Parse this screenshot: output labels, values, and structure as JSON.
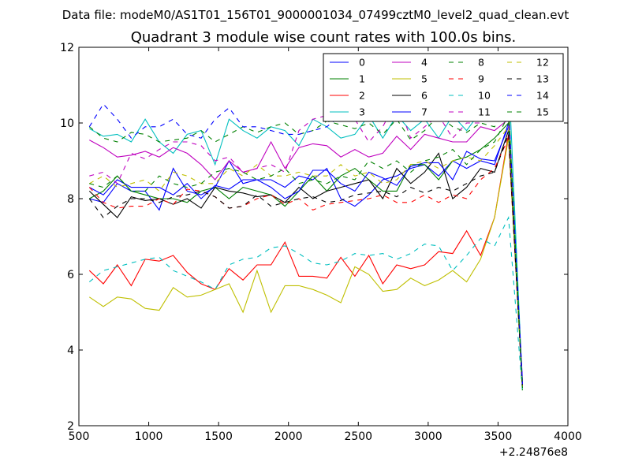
{
  "chart_data": {
    "type": "line",
    "suptitle": "Data file: modeM0/AS1T01_156T01_9000001034_07499cztM0_level2_quad_clean.evt",
    "title": "Quadrant 3 module wise count rates with 100.0s bins.",
    "xlabel": "",
    "ylabel": "",
    "xlim": [
      500,
      4000
    ],
    "ylim": [
      2,
      12
    ],
    "x_ticks": [
      "500",
      "1000",
      "1500",
      "2000",
      "2500",
      "3000",
      "3500",
      "4000"
    ],
    "y_ticks": [
      "2",
      "4",
      "6",
      "8",
      "10",
      "12"
    ],
    "x_offset_label": "+2.24876e8",
    "grid": false,
    "legend_position": "top-right",
    "x": [
      575,
      675,
      775,
      875,
      975,
      1075,
      1175,
      1275,
      1375,
      1475,
      1575,
      1675,
      1775,
      1875,
      1975,
      2075,
      2175,
      2275,
      2375,
      2475,
      2575,
      2675,
      2775,
      2875,
      2975,
      3075,
      3175,
      3275,
      3375,
      3475,
      3575,
      3675
    ],
    "series": [
      {
        "name": "0",
        "color": "#0000ff",
        "dash": "solid",
        "values": [
          8.0,
          7.9,
          8.4,
          8.2,
          8.2,
          7.7,
          8.8,
          8.2,
          8.1,
          8.3,
          9.0,
          8.4,
          8.5,
          8.5,
          8.3,
          8.6,
          8.5,
          8.8,
          8.0,
          7.8,
          8.1,
          8.5,
          8.6,
          8.8,
          8.9,
          8.6,
          9.0,
          8.8,
          9.0,
          8.9,
          10.0,
          3.2
        ]
      },
      {
        "name": "1",
        "color": "#008000",
        "dash": "solid",
        "values": [
          8.0,
          8.2,
          8.6,
          8.2,
          8.1,
          8.0,
          8.0,
          7.9,
          8.2,
          8.3,
          8.0,
          8.3,
          8.2,
          8.1,
          7.8,
          8.2,
          8.6,
          8.2,
          8.6,
          8.8,
          8.5,
          8.2,
          8.2,
          8.9,
          8.9,
          8.5,
          9.0,
          9.1,
          9.3,
          9.6,
          10.0,
          3.0
        ]
      },
      {
        "name": "2",
        "color": "#ff0000",
        "dash": "solid",
        "values": [
          6.1,
          5.75,
          6.25,
          5.7,
          6.4,
          6.35,
          6.5,
          6.05,
          5.75,
          5.6,
          6.15,
          5.85,
          6.25,
          6.25,
          6.85,
          5.95,
          5.95,
          5.9,
          6.45,
          5.95,
          6.5,
          5.75,
          6.25,
          6.15,
          6.25,
          6.6,
          6.55,
          7.15,
          6.5,
          7.5,
          9.7,
          3.1
        ]
      },
      {
        "name": "3",
        "color": "#00bfbf",
        "dash": "solid",
        "values": [
          9.85,
          9.65,
          9.7,
          9.5,
          10.1,
          9.5,
          9.2,
          9.7,
          9.8,
          8.9,
          10.1,
          9.8,
          9.6,
          9.9,
          9.8,
          9.4,
          10.1,
          9.9,
          9.6,
          9.7,
          10.2,
          9.6,
          10.2,
          9.8,
          10.1,
          9.6,
          10.2,
          9.8,
          10.3,
          10.2,
          11.4,
          3.0
        ]
      },
      {
        "name": "4",
        "color": "#bf00bf",
        "dash": "solid",
        "values": [
          9.55,
          9.35,
          9.1,
          9.15,
          9.25,
          9.1,
          9.35,
          9.2,
          8.9,
          8.5,
          9.0,
          8.7,
          8.8,
          9.5,
          8.8,
          9.35,
          9.45,
          9.4,
          9.1,
          9.3,
          9.1,
          9.2,
          9.65,
          9.3,
          9.7,
          9.6,
          9.5,
          9.5,
          9.9,
          9.8,
          10.1,
          3.1
        ]
      },
      {
        "name": "5",
        "color": "#bfbf00",
        "dash": "solid",
        "values": [
          5.4,
          5.15,
          5.4,
          5.35,
          5.1,
          5.05,
          5.65,
          5.4,
          5.45,
          5.6,
          5.75,
          5.0,
          6.1,
          5.0,
          5.7,
          5.7,
          5.6,
          5.45,
          5.25,
          6.2,
          6.0,
          5.55,
          5.6,
          5.9,
          5.7,
          5.85,
          6.1,
          5.8,
          6.4,
          7.5,
          9.6,
          3.0
        ]
      },
      {
        "name": "6",
        "color": "#000000",
        "dash": "solid",
        "values": [
          8.2,
          7.85,
          7.5,
          8.05,
          7.95,
          8.0,
          7.85,
          8.0,
          7.75,
          8.3,
          8.2,
          8.15,
          8.05,
          8.1,
          7.9,
          8.3,
          8.0,
          8.2,
          8.3,
          8.4,
          8.5,
          8.0,
          8.8,
          8.4,
          8.7,
          9.2,
          8.0,
          8.3,
          8.8,
          8.7,
          9.8,
          3.0
        ]
      },
      {
        "name": "7",
        "color": "#0000ff",
        "dash": "solid",
        "values": [
          8.3,
          8.1,
          8.5,
          8.3,
          8.3,
          8.3,
          8.1,
          8.4,
          8.0,
          8.35,
          8.25,
          8.5,
          8.5,
          8.3,
          8.0,
          8.2,
          8.75,
          8.75,
          8.4,
          8.2,
          8.7,
          8.55,
          8.35,
          8.85,
          8.95,
          8.95,
          8.5,
          9.25,
          9.05,
          9.0,
          9.9,
          3.1
        ]
      },
      {
        "name": "8",
        "color": "#008000",
        "dash": "dashed",
        "values": [
          9.9,
          9.6,
          9.5,
          9.75,
          9.7,
          9.5,
          9.55,
          9.6,
          9.8,
          9.5,
          9.7,
          9.9,
          9.75,
          9.9,
          10.0,
          9.7,
          9.8,
          10.05,
          9.95,
          9.85,
          10.0,
          9.7,
          10.1,
          9.55,
          9.8,
          10.2,
          9.9,
          9.75,
          10.0,
          9.9,
          10.5,
          2.9
        ]
      },
      {
        "name": "9",
        "color": "#ff0000",
        "dash": "dashed",
        "values": [
          8.3,
          7.9,
          7.75,
          7.8,
          7.8,
          8.0,
          7.85,
          8.25,
          8.2,
          8.05,
          7.75,
          7.8,
          8.0,
          8.1,
          7.85,
          8.0,
          7.7,
          7.85,
          7.9,
          7.95,
          8.0,
          8.1,
          7.9,
          7.9,
          8.1,
          7.9,
          8.1,
          8.0,
          8.5,
          8.8,
          9.6,
          3.0
        ]
      },
      {
        "name": "10",
        "color": "#00bfbf",
        "dash": "dashed",
        "values": [
          5.8,
          6.1,
          6.2,
          6.3,
          6.4,
          6.45,
          6.1,
          5.95,
          5.8,
          5.6,
          6.25,
          6.4,
          6.45,
          6.7,
          6.75,
          6.55,
          6.3,
          6.25,
          6.35,
          6.55,
          6.5,
          6.55,
          6.4,
          6.55,
          6.8,
          6.75,
          6.1,
          6.5,
          6.95,
          6.75,
          7.5,
          2.9
        ]
      },
      {
        "name": "11",
        "color": "#bf00bf",
        "dash": "dashed",
        "values": [
          8.6,
          8.7,
          8.4,
          9.2,
          9.05,
          9.3,
          9.5,
          9.5,
          9.4,
          9.0,
          9.1,
          8.7,
          8.8,
          8.9,
          8.7,
          9.8,
          10.1,
          10.2,
          10.3,
          10.1,
          9.5,
          9.9,
          10.6,
          9.6,
          9.9,
          10.2,
          9.6,
          10.0,
          10.0,
          10.5,
          10.1,
          3.0
        ]
      },
      {
        "name": "12",
        "color": "#bfbf00",
        "dash": "dashed",
        "values": [
          8.4,
          8.6,
          8.3,
          8.4,
          8.5,
          8.2,
          8.7,
          8.6,
          8.4,
          8.4,
          8.8,
          8.6,
          8.9,
          8.6,
          8.6,
          8.7,
          8.6,
          8.6,
          8.9,
          8.6,
          8.7,
          8.4,
          8.5,
          8.9,
          9.0,
          8.8,
          9.0,
          9.1,
          9.0,
          9.4,
          9.9,
          3.0
        ]
      },
      {
        "name": "13",
        "color": "#000000",
        "dash": "dashed",
        "values": [
          8.0,
          7.5,
          7.8,
          8.0,
          8.0,
          7.9,
          8.05,
          8.1,
          8.2,
          8.05,
          7.75,
          7.8,
          8.1,
          7.8,
          7.9,
          8.0,
          8.05,
          7.9,
          7.95,
          8.1,
          8.15,
          8.2,
          8.05,
          8.3,
          8.15,
          8.3,
          8.2,
          8.4,
          8.6,
          8.7,
          9.7,
          3.0
        ]
      },
      {
        "name": "14",
        "color": "#0000ff",
        "dash": "dashed",
        "values": [
          9.9,
          10.5,
          10.1,
          9.6,
          9.9,
          9.9,
          10.1,
          9.7,
          9.6,
          10.1,
          10.4,
          9.9,
          9.9,
          9.8,
          9.7,
          9.7,
          9.8,
          9.9,
          10.2,
          10.4,
          10.1,
          10.5,
          10.6,
          10.2,
          10.3,
          10.3,
          10.4,
          10.1,
          10.3,
          10.4,
          10.5,
          3.1
        ]
      },
      {
        "name": "15",
        "color": "#008000",
        "dash": "dashed",
        "values": [
          8.4,
          8.3,
          8.6,
          8.2,
          8.2,
          8.6,
          8.4,
          8.3,
          8.4,
          8.7,
          8.8,
          8.7,
          8.5,
          8.6,
          8.8,
          8.4,
          8.5,
          8.4,
          8.6,
          8.5,
          9.0,
          8.8,
          9.0,
          8.7,
          9.0,
          9.1,
          9.3,
          8.9,
          9.3,
          9.5,
          10.2,
          3.0
        ]
      }
    ]
  }
}
